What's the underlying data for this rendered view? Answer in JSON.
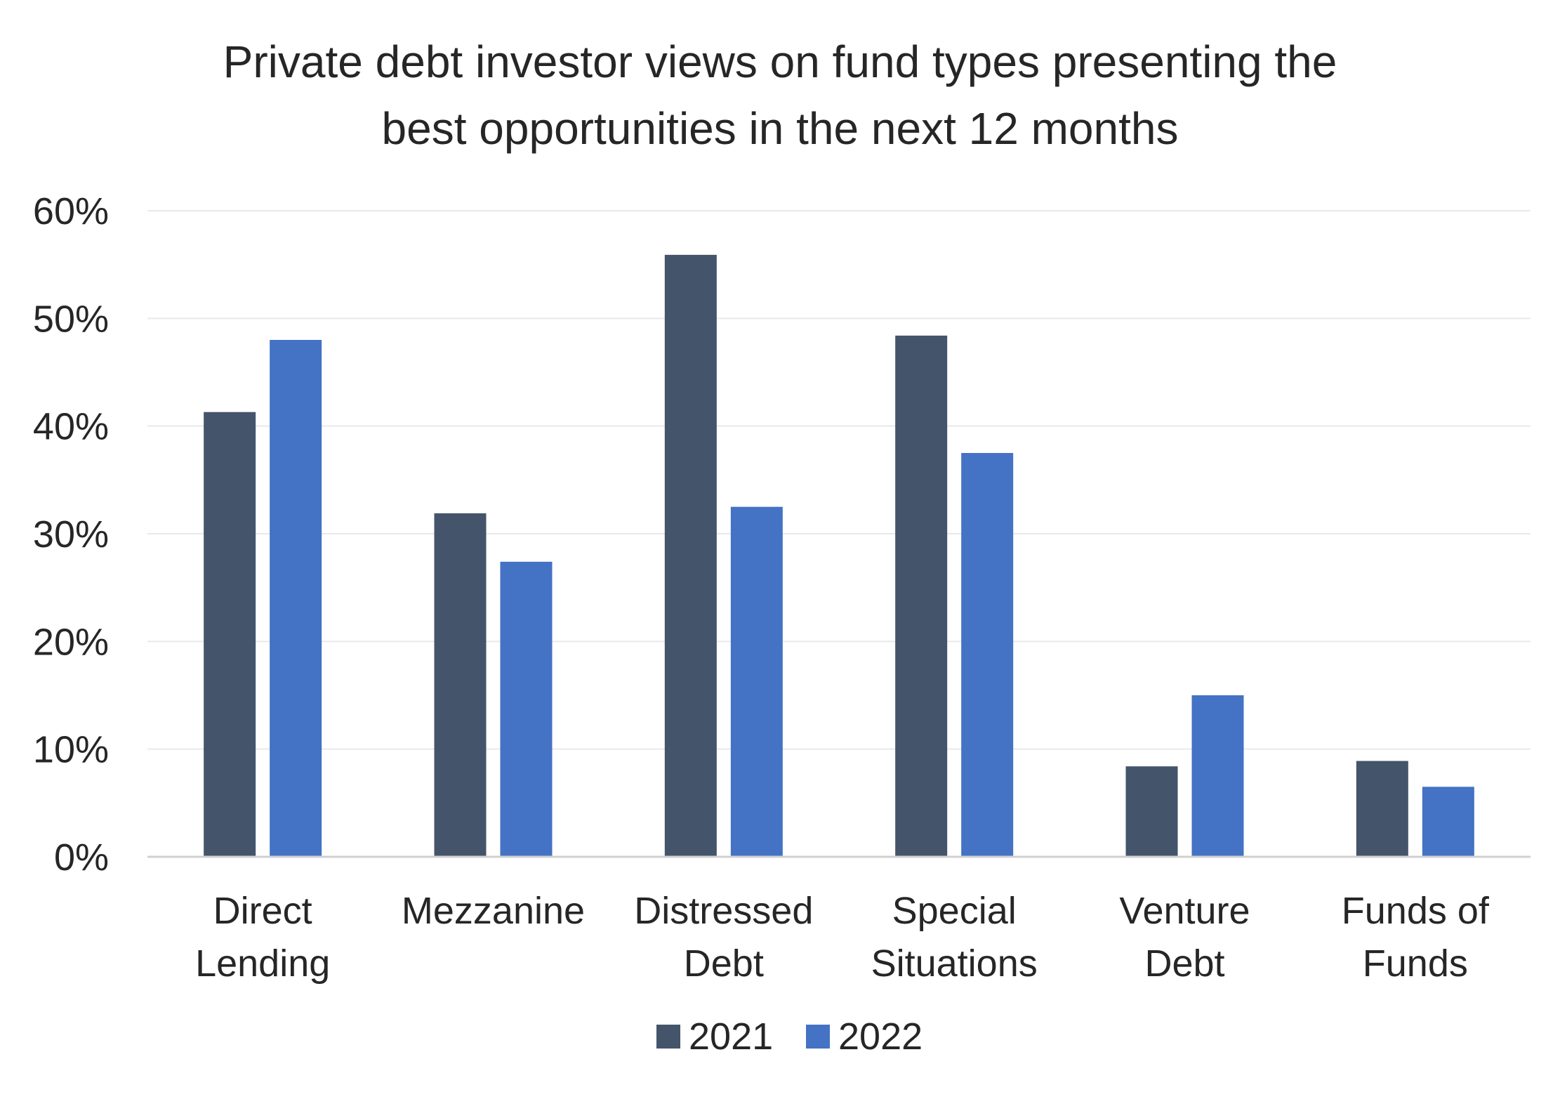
{
  "chart_data": {
    "type": "bar",
    "title_lines": [
      "Private debt investor views on fund types presenting the",
      "best opportunities in the next 12 months"
    ],
    "categories": [
      [
        "Direct",
        "Lending"
      ],
      [
        "Mezzanine"
      ],
      [
        "Distressed",
        "Debt"
      ],
      [
        "Special",
        "Situations"
      ],
      [
        "Venture",
        "Debt"
      ],
      [
        "Funds of",
        "Funds"
      ]
    ],
    "series": [
      {
        "name": "2021",
        "color": "#44546a",
        "values": [
          41.3,
          31.9,
          55.9,
          48.4,
          8.4,
          8.9
        ]
      },
      {
        "name": "2022",
        "color": "#4472c4",
        "values": [
          48.0,
          27.4,
          32.5,
          37.5,
          15.0,
          6.5
        ]
      }
    ],
    "ylim": [
      0,
      60
    ],
    "yticks": [
      0,
      10,
      20,
      30,
      40,
      50,
      60
    ],
    "ytick_labels": [
      "0%",
      "10%",
      "20%",
      "30%",
      "40%",
      "50%",
      "60%"
    ],
    "grid": true,
    "legend_position": "bottom"
  }
}
